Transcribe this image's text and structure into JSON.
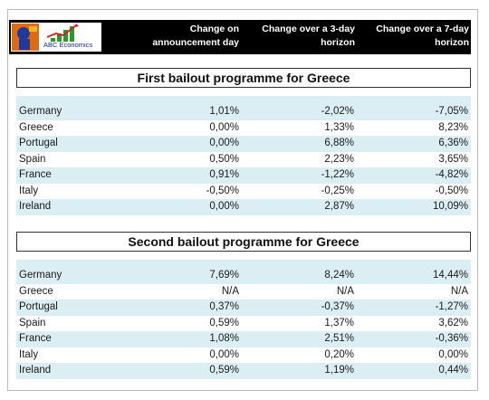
{
  "header": {
    "logo_text": "ABC Economics",
    "col1": [
      "Change on",
      "announcement day"
    ],
    "col2": [
      "Change over a 3-day",
      "horizon"
    ],
    "col3": [
      "Change over a 7-day",
      "horizon"
    ]
  },
  "sections": [
    {
      "title": "First bailout programme for Greece",
      "rows": [
        {
          "country": "Germany",
          "day": "1,01%",
          "h3": "-2,02%",
          "h7": "-7,05%"
        },
        {
          "country": "Greece",
          "day": "0,00%",
          "h3": "1,33%",
          "h7": "8,23%"
        },
        {
          "country": "Portugal",
          "day": "0,00%",
          "h3": "6,88%",
          "h7": "6,36%"
        },
        {
          "country": "Spain",
          "day": "0,50%",
          "h3": "2,23%",
          "h7": "3,65%"
        },
        {
          "country": "France",
          "day": "0,91%",
          "h3": "-1,22%",
          "h7": "-4,82%"
        },
        {
          "country": "Italy",
          "day": "-0,50%",
          "h3": "-0,25%",
          "h7": "-0,50%"
        },
        {
          "country": "Ireland",
          "day": "0,00%",
          "h3": "2,87%",
          "h7": "10,09%"
        }
      ]
    },
    {
      "title": "Second bailout programme for Greece",
      "rows": [
        {
          "country": "Germany",
          "day": "7,69%",
          "h3": "8,24%",
          "h7": "14,44%"
        },
        {
          "country": "Greece",
          "day": "N/A",
          "h3": "N/A",
          "h7": "N/A"
        },
        {
          "country": "Portugal",
          "day": "0,37%",
          "h3": "-0,37%",
          "h7": "-1,27%"
        },
        {
          "country": "Spain",
          "day": "0,59%",
          "h3": "1,37%",
          "h7": "3,62%"
        },
        {
          "country": "France",
          "day": "1,08%",
          "h3": "2,51%",
          "h7": "-0,36%"
        },
        {
          "country": "Italy",
          "day": "0,00%",
          "h3": "0,20%",
          "h7": "0,00%"
        },
        {
          "country": "Ireland",
          "day": "0,59%",
          "h3": "1,19%",
          "h7": "0,44%"
        }
      ]
    }
  ]
}
